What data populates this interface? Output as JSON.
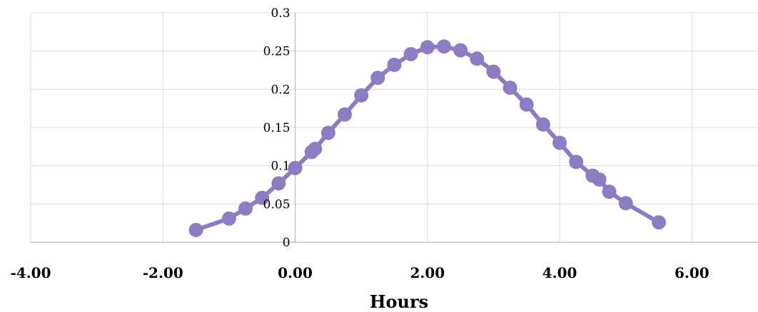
{
  "chart_data": {
    "type": "line",
    "title": "",
    "xlabel": "Hours",
    "ylabel": "",
    "xlim": [
      -4,
      7
    ],
    "ylim": [
      0,
      0.3
    ],
    "x_ticks": [
      -4,
      -2,
      0,
      2,
      4,
      6
    ],
    "x_tick_labels": [
      "-4.00",
      "-2.00",
      "0.00",
      "2.00",
      "4.00",
      "6.00"
    ],
    "y_ticks": [
      0,
      0.05,
      0.1,
      0.15,
      0.2,
      0.25,
      0.3
    ],
    "y_tick_labels": [
      "0",
      "0.05",
      "0.1",
      "0.15",
      "0.2",
      "0.25",
      "0.3"
    ],
    "grid": true,
    "legend": "none",
    "series_color": "#8e7cc3",
    "series": [
      {
        "x": [
          -1.5,
          -1.0,
          -0.75,
          -0.5,
          -0.25,
          0.0,
          0.25,
          0.3,
          0.5,
          0.75,
          1.0,
          1.25,
          1.5,
          1.75,
          2.0,
          2.25,
          2.5,
          2.75,
          3.0,
          3.25,
          3.5,
          3.75,
          4.0,
          4.25,
          4.5,
          4.6,
          4.75,
          5.0,
          5.5
        ],
        "y": [
          0.016,
          0.031,
          0.044,
          0.058,
          0.077,
          0.097,
          0.118,
          0.122,
          0.143,
          0.167,
          0.192,
          0.215,
          0.232,
          0.246,
          0.255,
          0.256,
          0.251,
          0.24,
          0.223,
          0.202,
          0.18,
          0.154,
          0.13,
          0.105,
          0.087,
          0.082,
          0.066,
          0.051,
          0.026
        ]
      }
    ]
  }
}
